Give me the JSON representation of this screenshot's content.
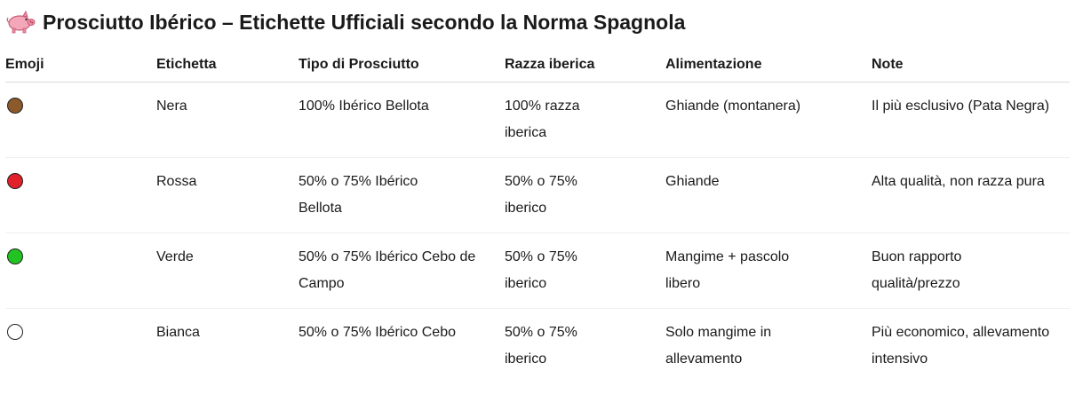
{
  "page": {
    "title": "Prosciutto Ibérico – Etichette Ufficiali secondo la Norma Spagnola",
    "title_icon": "pig-icon"
  },
  "table": {
    "headers": [
      "Emoji",
      "Etichetta",
      "Tipo di Prosciutto",
      "Razza iberica",
      "Alimentazione",
      "Note"
    ],
    "rows": [
      {
        "emoji_color": "#8b5a2b",
        "emoji_icon": "brown-circle-icon",
        "etichetta": "Nera",
        "tipo": "100% Ibérico Bellota",
        "razza": "100% razza iberica",
        "alimentazione": "Ghiande (montanera)",
        "note": "Il più esclusivo (Pata Negra)"
      },
      {
        "emoji_color": "#e0202a",
        "emoji_icon": "red-circle-icon",
        "etichetta": "Rossa",
        "tipo": "50% o 75% Ibérico Bellota",
        "razza": "50% o 75% iberico",
        "alimentazione": "Ghiande",
        "note": "Alta qualità, non razza pura"
      },
      {
        "emoji_color": "#22c422",
        "emoji_icon": "green-circle-icon",
        "etichetta": "Verde",
        "tipo": "50% o 75% Ibérico Cebo de Campo",
        "razza": "50% o 75% iberico",
        "alimentazione": "Mangime + pascolo libero",
        "note": "Buon rapporto qualità/prezzo"
      },
      {
        "emoji_color": "#ffffff",
        "emoji_icon": "white-circle-icon",
        "etichetta": "Bianca",
        "tipo": "50% o 75% Ibérico Cebo",
        "razza": "50% o 75% iberico",
        "alimentazione": "Solo mangime in allevamento",
        "note": "Più economico, allevamento intensivo"
      }
    ]
  }
}
